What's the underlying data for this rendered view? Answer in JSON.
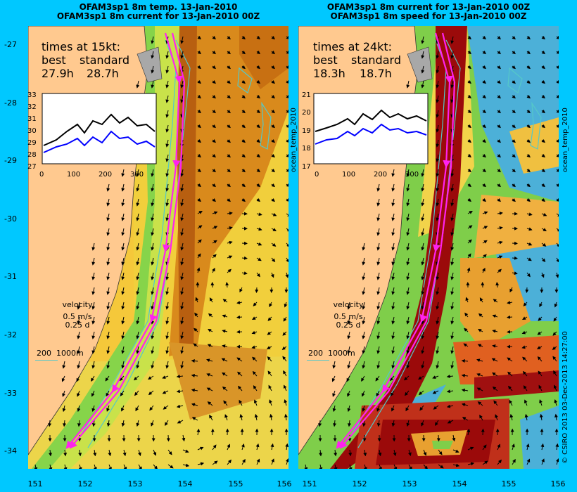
{
  "left": {
    "title1": "OFAM3sp1 8m temp. 13-Jan-2010",
    "title2": "OFAM3sp1 8m current for 13-Jan-2010 00Z",
    "times_heading": "times at 15kt:",
    "col_best": "best",
    "col_standard": "standard",
    "best_value": "27.9h",
    "standard_value": "28.7h",
    "side_label": "ocean_temp_2010",
    "inset": {
      "yticks": [
        "33",
        "32",
        "31",
        "30",
        "29",
        "28",
        "27"
      ],
      "xticks": [
        "0",
        "100",
        "200",
        "300"
      ]
    }
  },
  "right": {
    "title1": "OFAM3sp1 8m current for 13-Jan-2010 00Z",
    "title2": "OFAM3sp1 8m speed for 13-Jan-2010 00Z",
    "times_heading": "times at 24kt:",
    "col_best": "best",
    "col_standard": "standard",
    "best_value": "18.3h",
    "standard_value": "18.7h",
    "side_label": "ocean_temp_2010",
    "inset": {
      "yticks": [
        "21",
        "20",
        "19",
        "18",
        "17"
      ],
      "xticks": [
        "0",
        "100",
        "200",
        "300"
      ]
    }
  },
  "velocity_legend": {
    "label": "velocity",
    "line1": "0.5 m/s",
    "line2": "0.25 d"
  },
  "depth_legend": "200  1000m",
  "lat_ticks": [
    "-27",
    "-28",
    "-29",
    "-30",
    "-31",
    "-32",
    "-33",
    "-34"
  ],
  "lon_ticks": [
    "151",
    "152",
    "153",
    "154",
    "155",
    "156"
  ],
  "credit": "© CSIRO 2013   03-Dec-2013 14:27:00",
  "colors": {
    "background": "#00c8ff",
    "land": "#ffc98f",
    "route": "#ff22ee",
    "contour": "#55c8c8",
    "best_line": "#000000",
    "standard_line": "#0000ff"
  }
}
